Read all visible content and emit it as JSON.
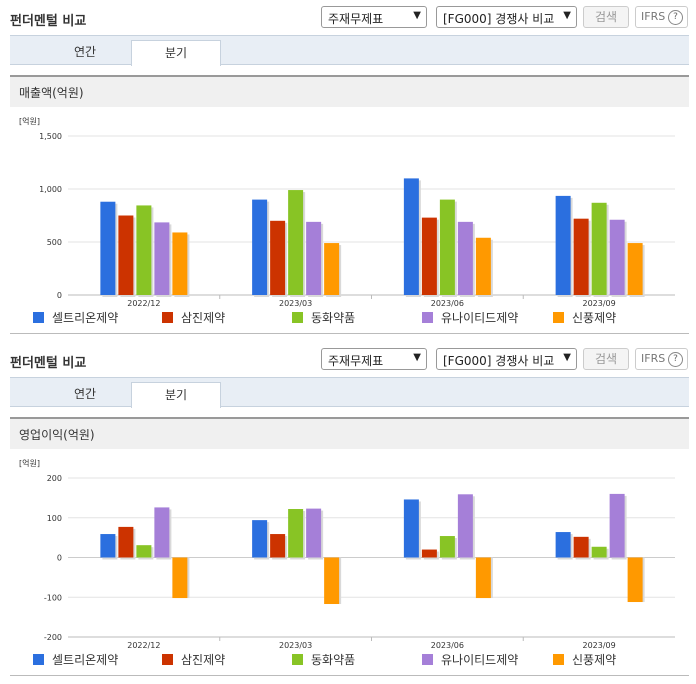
{
  "panels": [
    {
      "title": "펀더멘털 비교",
      "select_type": "주재무제표",
      "select_peer": "[FG000] 경쟁사 비교",
      "search_label": "검색",
      "ifrs_label": "IFRS",
      "help_label": "?",
      "tabs": [
        "연간",
        "분기"
      ],
      "active_tab": "분기",
      "chart_header": "매출액(억원)"
    },
    {
      "title": "펀더멘털 비교",
      "select_type": "주재무제표",
      "select_peer": "[FG000] 경쟁사 비교",
      "search_label": "검색",
      "ifrs_label": "IFRS",
      "help_label": "?",
      "tabs": [
        "연간",
        "분기"
      ],
      "active_tab": "분기",
      "chart_header": "영업이익(억원)"
    }
  ],
  "colors": {
    "셀트리온제약": "#2b6fdf",
    "삼진제약": "#cc3300",
    "동화약품": "#88c425",
    "유나이티드제약": "#a57fd8",
    "신풍제약": "#ff9900"
  },
  "chart_data": [
    {
      "type": "bar",
      "title": "매출액(억원)",
      "ylabel": "[억원]",
      "xlabel": "",
      "categories": [
        "2022/12",
        "2023/03",
        "2023/06",
        "2023/09"
      ],
      "ylim": [
        0,
        1500
      ],
      "yticks": [
        0,
        500,
        1000,
        1500
      ],
      "ytick_labels": [
        "0",
        "500",
        "1,000",
        "1,500"
      ],
      "grid": true,
      "legend": "bottom",
      "series": [
        {
          "name": "셀트리온제약",
          "values": [
            880,
            900,
            1100,
            935
          ]
        },
        {
          "name": "삼진제약",
          "values": [
            750,
            700,
            730,
            720
          ]
        },
        {
          "name": "동화약품",
          "values": [
            845,
            990,
            900,
            870
          ]
        },
        {
          "name": "유나이티드제약",
          "values": [
            685,
            690,
            690,
            710
          ]
        },
        {
          "name": "신풍제약",
          "values": [
            590,
            490,
            540,
            490
          ]
        }
      ]
    },
    {
      "type": "bar",
      "title": "영업이익(억원)",
      "ylabel": "[억원]",
      "xlabel": "",
      "categories": [
        "2022/12",
        "2023/03",
        "2023/06",
        "2023/09"
      ],
      "ylim": [
        -200,
        200
      ],
      "yticks": [
        -200,
        -100,
        0,
        100,
        200
      ],
      "ytick_labels": [
        "-200",
        "-100",
        "0",
        "100",
        "200"
      ],
      "grid": true,
      "legend": "bottom",
      "series": [
        {
          "name": "셀트리온제약",
          "values": [
            59,
            94,
            146,
            64
          ]
        },
        {
          "name": "삼진제약",
          "values": [
            77,
            59,
            20,
            52
          ]
        },
        {
          "name": "동화약품",
          "values": [
            31,
            122,
            54,
            27
          ]
        },
        {
          "name": "유나이티드제약",
          "values": [
            126,
            123,
            159,
            160
          ]
        },
        {
          "name": "신풍제약",
          "values": [
            -102,
            -117,
            -102,
            -112
          ]
        }
      ]
    }
  ]
}
